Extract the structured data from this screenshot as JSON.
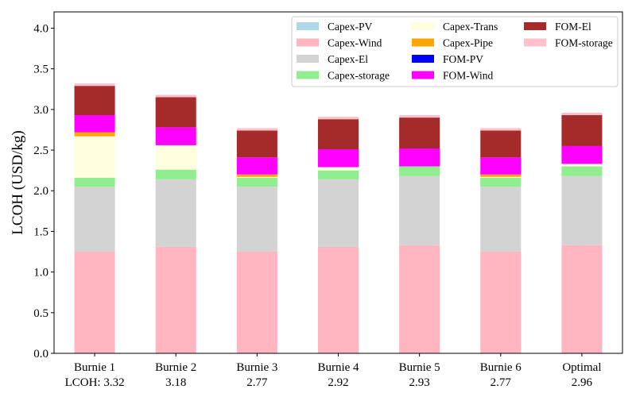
{
  "chart_data": {
    "type": "bar",
    "stacked": true,
    "ylabel": "LCOH (USD/kg)",
    "xlabel": "",
    "ylim": [
      0,
      4.2
    ],
    "yticks": [
      "0.0",
      "0.5",
      "1.0",
      "1.5",
      "2.0",
      "2.5",
      "3.0",
      "3.5",
      "4.0"
    ],
    "grid": false,
    "legend_position": "top-right",
    "legend_columns": 3,
    "categories": [
      {
        "name": "Burnie 1",
        "lcoh_label": "LCOH: 3.32"
      },
      {
        "name": "Burnie 2",
        "lcoh_label": "3.18"
      },
      {
        "name": "Burnie 3",
        "lcoh_label": "2.77"
      },
      {
        "name": "Burnie 4",
        "lcoh_label": "2.92"
      },
      {
        "name": "Burnie 5",
        "lcoh_label": "2.93"
      },
      {
        "name": "Burnie 6",
        "lcoh_label": "2.77"
      },
      {
        "name": "Optimal",
        "lcoh_label": "2.96"
      }
    ],
    "series": [
      {
        "name": "Capex-PV",
        "color": "#add8e6",
        "values": [
          0,
          0,
          0,
          0,
          0,
          0,
          0
        ]
      },
      {
        "name": "Capex-Wind",
        "color": "#ffb6c1",
        "values": [
          1.25,
          1.31,
          1.25,
          1.31,
          1.33,
          1.25,
          1.33
        ]
      },
      {
        "name": "Capex-El",
        "color": "#d3d3d3",
        "values": [
          0.8,
          0.83,
          0.8,
          0.83,
          0.85,
          0.8,
          0.85
        ]
      },
      {
        "name": "Capex-storage",
        "color": "#90ee90",
        "values": [
          0.11,
          0.12,
          0.11,
          0.11,
          0.12,
          0.11,
          0.12
        ]
      },
      {
        "name": "Capex-Trans",
        "color": "#ffffe0",
        "values": [
          0.51,
          0.3,
          0.01,
          0.04,
          0.0,
          0.01,
          0.03
        ]
      },
      {
        "name": "Capex-Pipe",
        "color": "#ffa500",
        "values": [
          0.05,
          0.0,
          0.03,
          0.0,
          0.0,
          0.03,
          0.0
        ]
      },
      {
        "name": "FOM-PV",
        "color": "#0000ff",
        "values": [
          0,
          0,
          0,
          0,
          0,
          0,
          0
        ]
      },
      {
        "name": "FOM-Wind",
        "color": "#ff00ff",
        "values": [
          0.21,
          0.22,
          0.21,
          0.22,
          0.22,
          0.21,
          0.22
        ]
      },
      {
        "name": "FOM-El",
        "color": "#a52a2a",
        "values": [
          0.36,
          0.37,
          0.33,
          0.37,
          0.38,
          0.33,
          0.38
        ]
      },
      {
        "name": "FOM-storage",
        "color": "#ffc0cb",
        "values": [
          0.03,
          0.03,
          0.03,
          0.03,
          0.03,
          0.03,
          0.03
        ]
      }
    ]
  }
}
